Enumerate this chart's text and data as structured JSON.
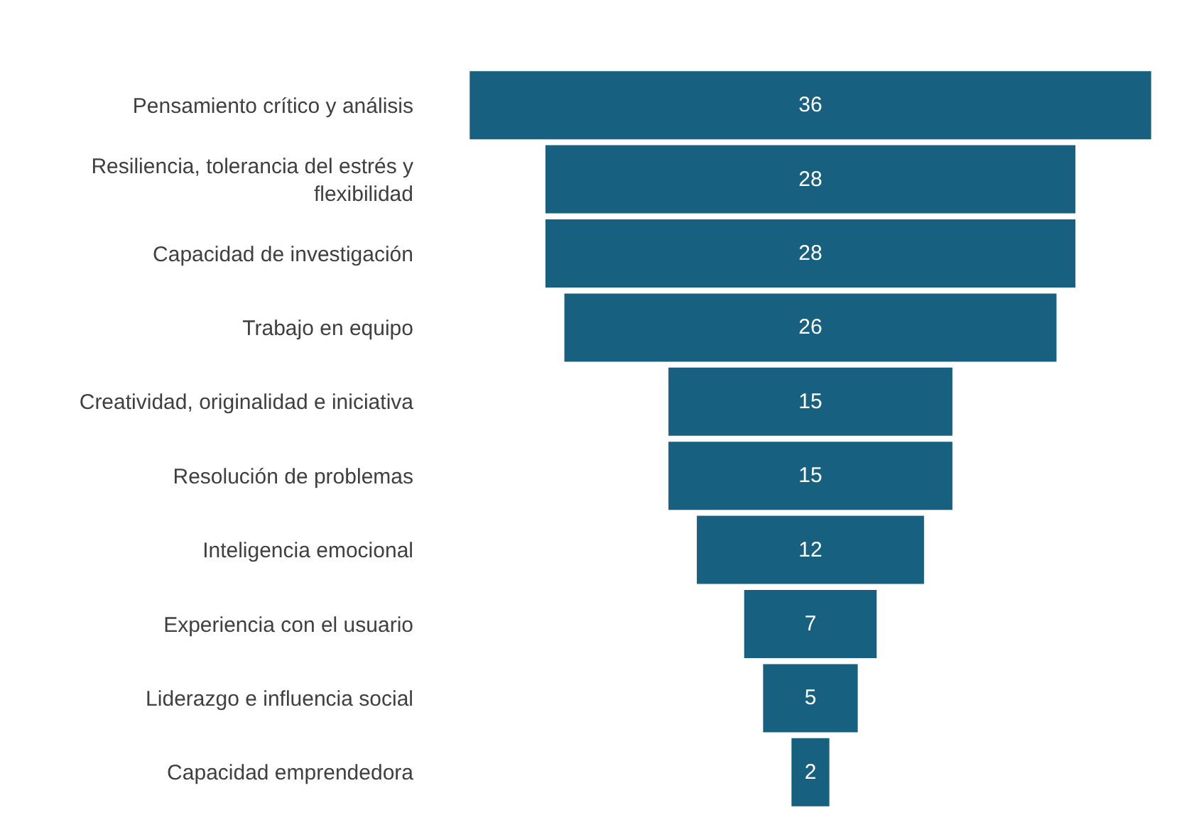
{
  "chart_data": {
    "type": "other",
    "categories": [
      "Pensamiento crítico y análisis",
      "Resiliencia, tolerancia del estrés y flexibilidad",
      "Capacidad de investigación",
      "Trabajo en equipo",
      "Creatividad, originalidad e iniciativa",
      "Resolución de problemas",
      "Inteligencia emocional",
      "Experiencia con el usuario",
      "Liderazgo e influencia social",
      "Capacidad emprendedora"
    ],
    "values": [
      36,
      28,
      28,
      26,
      15,
      15,
      12,
      7,
      5,
      2
    ],
    "color": "#17607f",
    "data_labels": true
  }
}
